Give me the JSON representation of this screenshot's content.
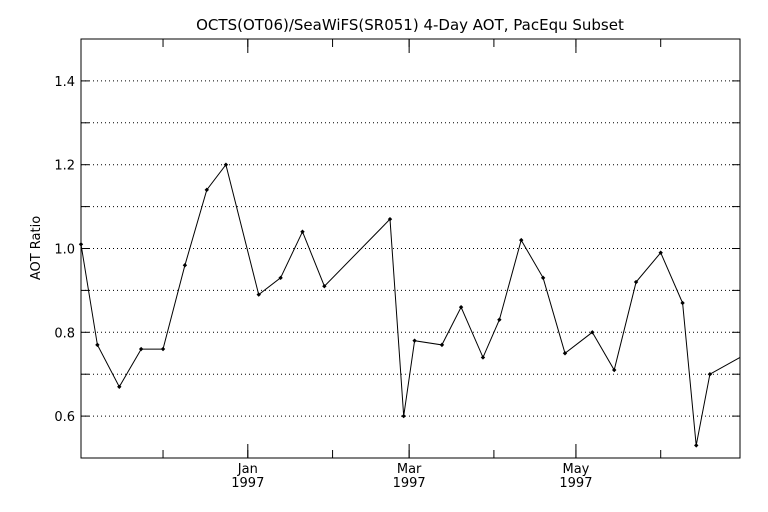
{
  "chart_data": {
    "type": "line",
    "title": "OCTS(OT06)/SeaWiFS(SR051) 4-Day AOT, PacEqu Subset",
    "xlabel": "",
    "ylabel": "AOT Ratio",
    "xlim": [
      "1996-11-01",
      "1997-06-30"
    ],
    "ylim": [
      0.5,
      1.5
    ],
    "y_ticks": [
      {
        "value": 0.6,
        "label": "0.6"
      },
      {
        "value": 0.8,
        "label": "0.8"
      },
      {
        "value": 1.0,
        "label": "1.0"
      },
      {
        "value": 1.2,
        "label": "1.2"
      },
      {
        "value": 1.4,
        "label": "1.4"
      }
    ],
    "x_ticks": [
      {
        "date": "1997-01-01",
        "line1": "Jan",
        "line2": "1997"
      },
      {
        "date": "1997-03-01",
        "line1": "Mar",
        "line2": "1997"
      },
      {
        "date": "1997-05-01",
        "line1": "May",
        "line2": "1997"
      }
    ],
    "grid": "horizontal dotted",
    "series": [
      {
        "x": [
          "1996-11-01",
          "1996-11-07",
          "1996-11-15",
          "1996-11-23",
          "1996-12-01",
          "1996-12-09",
          "1996-12-17",
          "1996-12-24",
          "1997-01-05",
          "1997-01-13",
          "1997-01-21",
          "1997-01-29",
          "1997-02-22",
          "1997-02-27",
          "1997-03-03",
          "1997-03-13",
          "1997-03-20",
          "1997-03-28",
          "1997-04-03",
          "1997-04-11",
          "1997-04-19",
          "1997-04-27",
          "1997-05-07",
          "1997-05-15",
          "1997-05-23",
          "1997-06-01",
          "1997-06-09",
          "1997-06-14",
          "1997-06-19",
          "1997-06-30"
        ],
        "y": [
          1.01,
          0.77,
          0.67,
          0.76,
          0.76,
          0.96,
          1.14,
          1.2,
          0.89,
          0.93,
          1.04,
          0.91,
          1.07,
          0.6,
          0.78,
          0.77,
          0.86,
          0.74,
          0.83,
          1.02,
          0.93,
          0.75,
          0.8,
          0.71,
          0.92,
          0.99,
          0.87,
          0.53,
          0.7,
          0.74
        ]
      }
    ]
  }
}
